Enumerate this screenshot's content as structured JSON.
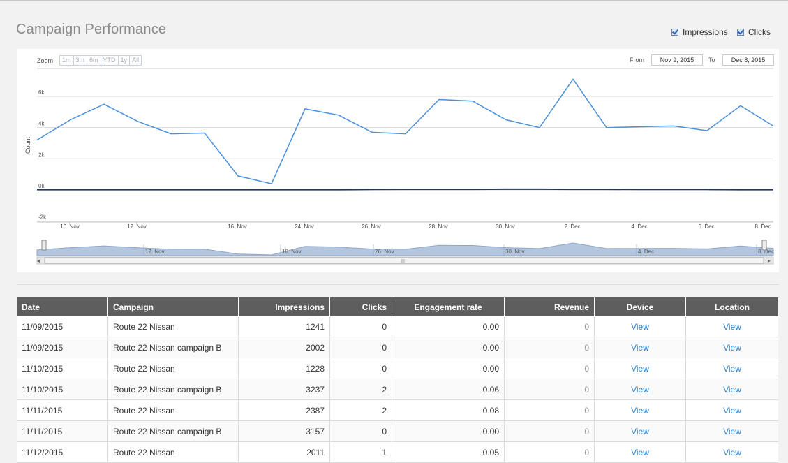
{
  "page": {
    "title": "Campaign Performance"
  },
  "legend": {
    "impressions_label": "Impressions",
    "clicks_label": "Clicks"
  },
  "chart_controls": {
    "zoom_label": "Zoom",
    "zoom_buttons": [
      "1m",
      "3m",
      "6m",
      "YTD",
      "1y",
      "All"
    ],
    "from_label": "From",
    "from_value": "Nov 9, 2015",
    "to_label": "To",
    "to_value": "Dec 8, 2015",
    "navigator_ticks": [
      "12. Nov",
      "18. Nov",
      "26. Nov",
      "30. Nov",
      "4. Dec",
      "8. Dec"
    ]
  },
  "chart_data": {
    "type": "line",
    "ylabel": "Count",
    "ylim": [
      -2000,
      8000
    ],
    "yticks": [
      "-2k",
      "0k",
      "2k",
      "4k",
      "6k"
    ],
    "ytick_values": [
      -2000,
      0,
      2000,
      4000,
      6000
    ],
    "xticks": [
      "10. Nov",
      "12. Nov",
      "16. Nov",
      "24. Nov",
      "26. Nov",
      "28. Nov",
      "30. Nov",
      "2. Dec",
      "4. Dec",
      "6. Dec",
      "8. Dec"
    ],
    "series": [
      {
        "name": "Impressions",
        "color": "#4a90d9",
        "values": [
          3200,
          4500,
          5500,
          4400,
          3600,
          3650,
          900,
          400,
          5200,
          4800,
          3700,
          3600,
          5800,
          5700,
          4500,
          4000,
          7100,
          4000,
          4050,
          4100,
          3800,
          5400,
          4100
        ]
      },
      {
        "name": "Clicks",
        "color": "#23395b",
        "values": [
          20,
          20,
          20,
          20,
          20,
          20,
          20,
          20,
          20,
          20,
          30,
          40,
          40,
          40,
          50,
          50,
          40,
          40,
          30,
          30,
          30,
          20,
          20
        ]
      }
    ]
  },
  "table": {
    "headers": [
      "Date",
      "Campaign",
      "Impressions",
      "Clicks",
      "Engagement rate",
      "Revenue",
      "Device",
      "Location"
    ],
    "rows": [
      [
        "11/09/2015",
        "Route 22 Nissan",
        "1241",
        "0",
        "0.00",
        "0",
        "View",
        "View"
      ],
      [
        "11/09/2015",
        "Route 22 Nissan campaign B",
        "2002",
        "0",
        "0.00",
        "0",
        "View",
        "View"
      ],
      [
        "11/10/2015",
        "Route 22 Nissan",
        "1228",
        "0",
        "0.00",
        "0",
        "View",
        "View"
      ],
      [
        "11/10/2015",
        "Route 22 Nissan campaign B",
        "3237",
        "2",
        "0.06",
        "0",
        "View",
        "View"
      ],
      [
        "11/11/2015",
        "Route 22 Nissan",
        "2387",
        "2",
        "0.08",
        "0",
        "View",
        "View"
      ],
      [
        "11/11/2015",
        "Route 22 Nissan campaign B",
        "3157",
        "0",
        "0.00",
        "0",
        "View",
        "View"
      ],
      [
        "11/12/2015",
        "Route 22 Nissan",
        "2011",
        "1",
        "0.05",
        "0",
        "View",
        "View"
      ]
    ]
  }
}
